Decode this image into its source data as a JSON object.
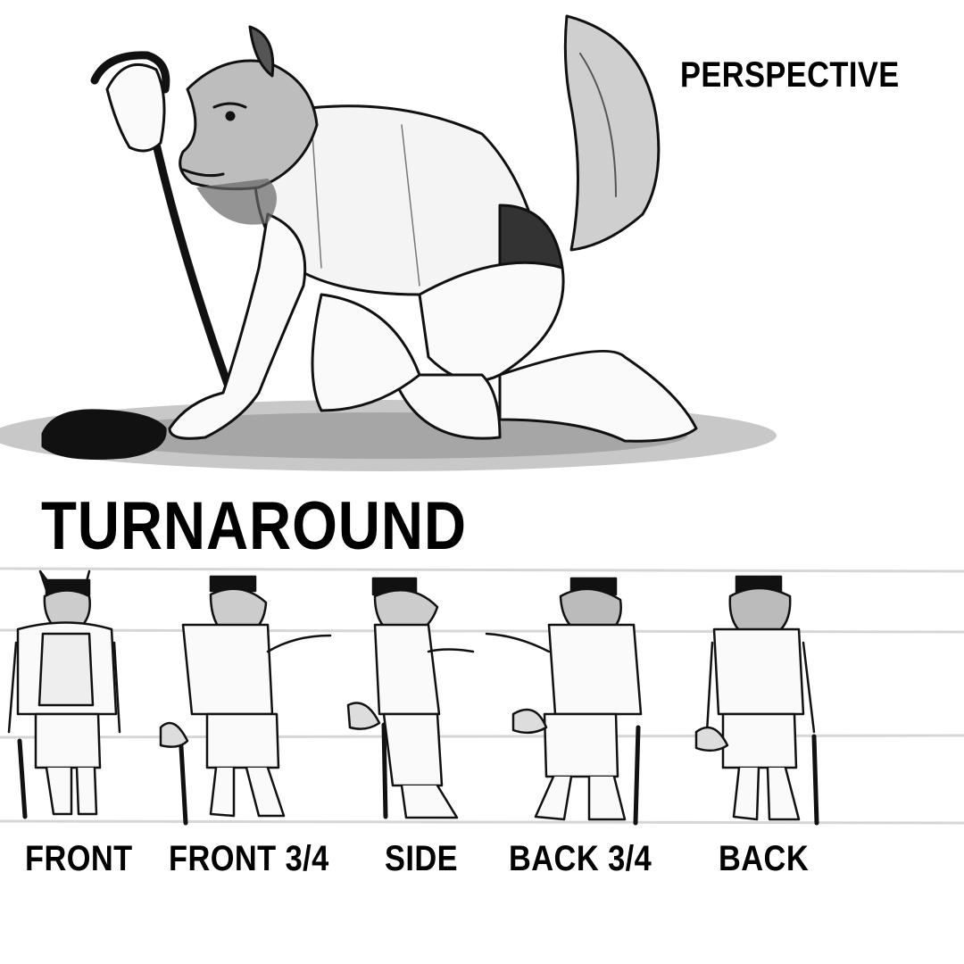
{
  "perspective": {
    "label": "PERSPECTIVE"
  },
  "turnaround": {
    "title": "TURNAROUND",
    "views": [
      {
        "label": "FRONT"
      },
      {
        "label": "FRONT 3/4"
      },
      {
        "label": "SIDE"
      },
      {
        "label": "BACK 3/4"
      },
      {
        "label": "BACK"
      }
    ]
  }
}
